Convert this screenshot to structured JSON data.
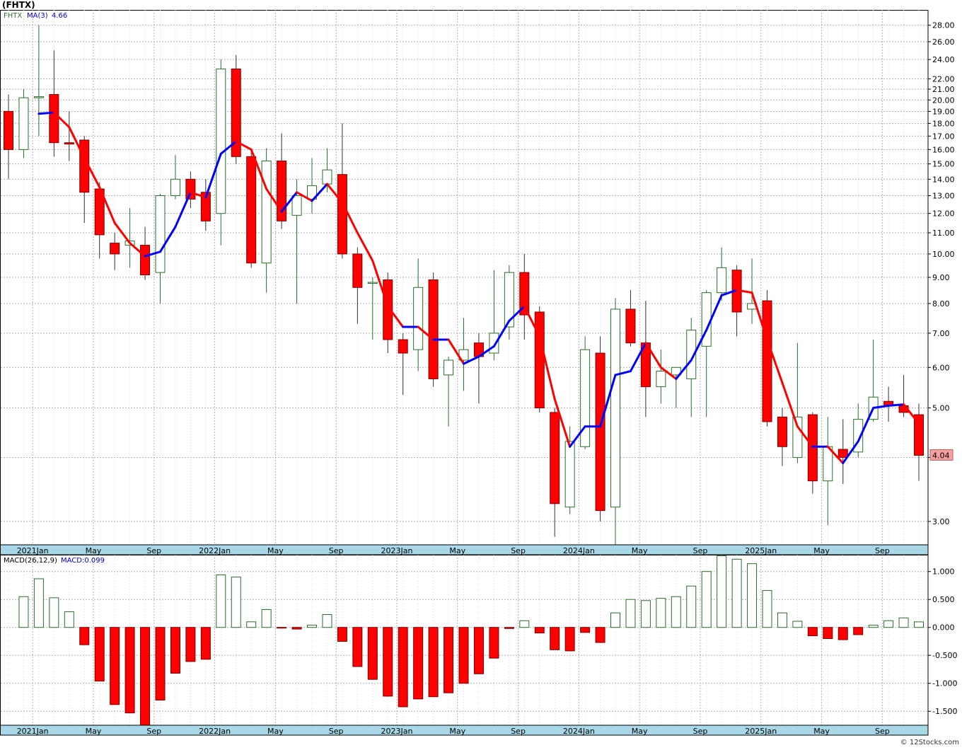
{
  "title": "(FHTX)",
  "watermark": "© 12Stocks.com",
  "colors": {
    "up": "#2a6e2a",
    "down": "#ff0000",
    "ma_above": "#0000ff",
    "ma_below": "#ff0000",
    "grid": "#b0b0b0",
    "axis_band": "#a8d8e8",
    "frame": "#000000",
    "price_tag_bg": "#f4a0a0"
  },
  "legend": {
    "symbol": "FHTX",
    "ma_label": "MA(3)",
    "ma_value": "4.66",
    "macd_label": "MACD(26,12,9)",
    "macd_value": "MACD:0.099",
    "last_price": "4.04"
  },
  "chart_data": [
    {
      "type": "candlestick",
      "scale": "log",
      "interval": "monthly",
      "ylim": [
        2.7,
        30
      ],
      "y_ticks": [
        "3.00",
        "4.00",
        "5.00",
        "6.00",
        "7.00",
        "8.00",
        "9.00",
        "10.00",
        "11.00",
        "12.00",
        "13.00",
        "14.00",
        "15.00",
        "16.00",
        "17.00",
        "18.00",
        "19.00",
        "20.00",
        "21.00",
        "22.00",
        "24.00",
        "26.00",
        "28.00"
      ],
      "x_labels": [
        "2021Jan",
        "May",
        "Sep",
        "2022Jan",
        "May",
        "Sep",
        "2023Jan",
        "May",
        "Sep",
        "2024Jan",
        "May",
        "Sep",
        "2025Jan",
        "May",
        "Sep"
      ],
      "x_label_months": [
        2,
        6,
        10,
        14,
        18,
        22,
        26,
        30,
        34,
        38,
        42,
        46,
        50,
        54,
        58
      ],
      "candles": [
        {
          "o": 19.0,
          "h": 20.5,
          "l": 14.0,
          "c": 16.0
        },
        {
          "o": 16.0,
          "h": 21.0,
          "l": 15.4,
          "c": 20.2
        },
        {
          "o": 20.2,
          "h": 28.0,
          "l": 17.0,
          "c": 20.3
        },
        {
          "o": 20.5,
          "h": 25.0,
          "l": 15.5,
          "c": 16.5
        },
        {
          "o": 16.5,
          "h": 19.0,
          "l": 15.2,
          "c": 16.4
        },
        {
          "o": 16.7,
          "h": 17.0,
          "l": 11.5,
          "c": 13.2
        },
        {
          "o": 13.4,
          "h": 13.8,
          "l": 9.8,
          "c": 10.9
        },
        {
          "o": 10.5,
          "h": 11.0,
          "l": 9.3,
          "c": 10.0
        },
        {
          "o": 10.4,
          "h": 12.3,
          "l": 9.4,
          "c": 10.6
        },
        {
          "o": 10.4,
          "h": 11.3,
          "l": 8.9,
          "c": 9.1
        },
        {
          "o": 9.2,
          "h": 13.1,
          "l": 8.0,
          "c": 13.0
        },
        {
          "o": 13.0,
          "h": 15.6,
          "l": 12.8,
          "c": 14.0
        },
        {
          "o": 14.0,
          "h": 14.5,
          "l": 12.3,
          "c": 12.8
        },
        {
          "o": 13.2,
          "h": 14.0,
          "l": 11.1,
          "c": 11.6
        },
        {
          "o": 12.0,
          "h": 24.0,
          "l": 10.4,
          "c": 23.0
        },
        {
          "o": 23.0,
          "h": 24.5,
          "l": 15.0,
          "c": 15.5
        },
        {
          "o": 15.5,
          "h": 15.8,
          "l": 9.4,
          "c": 9.6
        },
        {
          "o": 9.6,
          "h": 16.1,
          "l": 8.4,
          "c": 15.2
        },
        {
          "o": 15.2,
          "h": 17.2,
          "l": 11.2,
          "c": 11.6
        },
        {
          "o": 11.9,
          "h": 14.0,
          "l": 8.0,
          "c": 13.0
        },
        {
          "o": 12.8,
          "h": 15.4,
          "l": 12.0,
          "c": 13.6
        },
        {
          "o": 13.7,
          "h": 16.1,
          "l": 13.2,
          "c": 14.6
        },
        {
          "o": 14.3,
          "h": 18.0,
          "l": 9.8,
          "c": 10.0
        },
        {
          "o": 10.0,
          "h": 10.3,
          "l": 7.3,
          "c": 8.6
        },
        {
          "o": 8.8,
          "h": 9.0,
          "l": 6.8,
          "c": 8.8
        },
        {
          "o": 8.9,
          "h": 9.2,
          "l": 6.4,
          "c": 6.8
        },
        {
          "o": 6.8,
          "h": 7.0,
          "l": 5.3,
          "c": 6.4
        },
        {
          "o": 6.5,
          "h": 9.8,
          "l": 5.9,
          "c": 8.6
        },
        {
          "o": 8.9,
          "h": 9.2,
          "l": 5.5,
          "c": 5.7
        },
        {
          "o": 5.8,
          "h": 6.3,
          "l": 4.6,
          "c": 6.2
        },
        {
          "o": 6.2,
          "h": 7.5,
          "l": 5.4,
          "c": 6.5
        },
        {
          "o": 6.7,
          "h": 7.0,
          "l": 5.1,
          "c": 6.3
        },
        {
          "o": 6.4,
          "h": 9.3,
          "l": 6.2,
          "c": 7.0
        },
        {
          "o": 7.2,
          "h": 9.5,
          "l": 6.8,
          "c": 9.2
        },
        {
          "o": 9.2,
          "h": 10.0,
          "l": 6.8,
          "c": 7.6
        },
        {
          "o": 7.7,
          "h": 7.9,
          "l": 4.9,
          "c": 5.0
        },
        {
          "o": 4.9,
          "h": 5.0,
          "l": 2.8,
          "c": 3.25
        },
        {
          "o": 3.2,
          "h": 4.6,
          "l": 3.1,
          "c": 4.3
        },
        {
          "o": 4.2,
          "h": 6.9,
          "l": 4.15,
          "c": 6.5
        },
        {
          "o": 6.4,
          "h": 6.9,
          "l": 3.0,
          "c": 3.15
        },
        {
          "o": 3.2,
          "h": 8.2,
          "l": 2.7,
          "c": 7.8
        },
        {
          "o": 7.8,
          "h": 8.5,
          "l": 6.6,
          "c": 6.7
        },
        {
          "o": 6.7,
          "h": 8.1,
          "l": 4.8,
          "c": 5.5
        },
        {
          "o": 5.5,
          "h": 6.5,
          "l": 5.1,
          "c": 5.9
        },
        {
          "o": 5.8,
          "h": 6.0,
          "l": 5.0,
          "c": 6.0
        },
        {
          "o": 5.7,
          "h": 7.5,
          "l": 4.8,
          "c": 7.1
        },
        {
          "o": 6.6,
          "h": 8.5,
          "l": 4.8,
          "c": 8.4
        },
        {
          "o": 8.4,
          "h": 10.3,
          "l": 8.1,
          "c": 9.4
        },
        {
          "o": 9.3,
          "h": 9.5,
          "l": 6.9,
          "c": 7.7
        },
        {
          "o": 7.8,
          "h": 9.8,
          "l": 7.3,
          "c": 8.0
        },
        {
          "o": 8.1,
          "h": 8.5,
          "l": 4.6,
          "c": 4.7
        },
        {
          "o": 4.8,
          "h": 5.0,
          "l": 3.85,
          "c": 4.2
        },
        {
          "o": 4.0,
          "h": 6.7,
          "l": 3.9,
          "c": 4.8
        },
        {
          "o": 4.85,
          "h": 4.9,
          "l": 3.4,
          "c": 3.6
        },
        {
          "o": 3.6,
          "h": 4.8,
          "l": 2.95,
          "c": 4.2
        },
        {
          "o": 4.15,
          "h": 4.75,
          "l": 3.55,
          "c": 4.0
        },
        {
          "o": 4.1,
          "h": 5.1,
          "l": 4.0,
          "c": 4.75
        },
        {
          "o": 4.75,
          "h": 6.8,
          "l": 4.7,
          "c": 5.25
        },
        {
          "o": 5.15,
          "h": 5.5,
          "l": 4.7,
          "c": 5.05
        },
        {
          "o": 5.05,
          "h": 5.8,
          "l": 4.8,
          "c": 4.9
        },
        {
          "o": 4.85,
          "h": 5.1,
          "l": 3.6,
          "c": 4.04
        }
      ],
      "ma3": [
        null,
        null,
        18.8,
        18.9,
        17.7,
        15.4,
        13.5,
        11.5,
        10.5,
        9.9,
        10.1,
        11.3,
        13.2,
        12.9,
        15.7,
        16.6,
        16.0,
        13.4,
        12.1,
        13.2,
        12.7,
        13.7,
        12.6,
        11.0,
        9.7,
        7.9,
        7.2,
        7.2,
        6.8,
        6.8,
        6.1,
        6.3,
        6.6,
        7.4,
        7.9,
        6.9,
        5.2,
        4.2,
        4.6,
        4.6,
        5.8,
        5.9,
        6.7,
        6.0,
        5.7,
        6.2,
        7.1,
        8.3,
        8.5,
        8.4,
        6.8,
        5.6,
        4.6,
        4.2,
        4.2,
        3.9,
        4.3,
        5.0,
        5.05,
        5.08,
        4.66
      ]
    },
    {
      "type": "bar",
      "name": "MACD(26,12,9)",
      "ylim": [
        -1.75,
        1.3
      ],
      "y_ticks": [
        "-1.500",
        "-1.000",
        "-0.500",
        "0.000",
        "0.500",
        "1.000"
      ],
      "x_labels": [
        "2021Jan",
        "May",
        "Sep",
        "2022Jan",
        "May",
        "Sep",
        "2023Jan",
        "May",
        "Sep",
        "2024Jan",
        "May",
        "Sep",
        "2025Jan",
        "May",
        "Sep"
      ],
      "values": [
        null,
        0.55,
        0.87,
        0.53,
        0.28,
        -0.31,
        -0.96,
        -1.38,
        -1.53,
        -1.75,
        -1.3,
        -0.82,
        -0.61,
        -0.57,
        0.94,
        0.9,
        0.1,
        0.32,
        -0.01,
        -0.03,
        0.04,
        0.23,
        -0.25,
        -0.7,
        -0.93,
        -1.23,
        -1.42,
        -1.28,
        -1.24,
        -1.17,
        -1.0,
        -0.83,
        -0.55,
        -0.02,
        0.12,
        -0.1,
        -0.4,
        -0.42,
        -0.09,
        -0.27,
        0.26,
        0.5,
        0.48,
        0.52,
        0.55,
        0.74,
        1.0,
        1.28,
        1.22,
        1.14,
        0.66,
        0.26,
        0.11,
        -0.15,
        -0.2,
        -0.22,
        -0.13,
        0.04,
        0.12,
        0.17,
        0.099
      ]
    }
  ]
}
